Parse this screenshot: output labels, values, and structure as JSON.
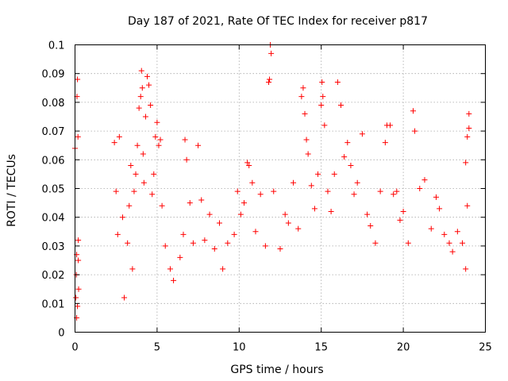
{
  "chart_data": {
    "type": "scatter",
    "title": "Day 187 of 2021, Rate Of TEC Index for receiver p817",
    "xlabel": "GPS time / hours",
    "ylabel": "ROTI / TECUs",
    "xlim": [
      0,
      25
    ],
    "ylim": [
      0,
      0.1
    ],
    "xticks": [
      0,
      5,
      10,
      15,
      20,
      25
    ],
    "xtick_labels": [
      "0",
      "5",
      "10",
      "15",
      "20",
      "25"
    ],
    "yticks": [
      0,
      0.01,
      0.02,
      0.03,
      0.04,
      0.05,
      0.06,
      0.07,
      0.08,
      0.09,
      0.1
    ],
    "ytick_labels": [
      "0",
      "0.01",
      "0.02",
      "0.03",
      "0.04",
      "0.05",
      "0.06",
      "0.07",
      "0.08",
      "0.09",
      "0.1"
    ],
    "grid": true,
    "marker": "+",
    "color": "#ff0000",
    "series": [
      {
        "points": [
          [
            0.0,
            0.064
          ],
          [
            0.05,
            0.012
          ],
          [
            0.1,
            0.027
          ],
          [
            0.12,
            0.082
          ],
          [
            0.15,
            0.088
          ],
          [
            0.18,
            0.068
          ],
          [
            0.2,
            0.032
          ],
          [
            0.22,
            0.015
          ],
          [
            0.1,
            0.005
          ],
          [
            0.15,
            0.009
          ],
          [
            0.08,
            0.02
          ],
          [
            0.2,
            0.025
          ],
          [
            2.4,
            0.066
          ],
          [
            2.5,
            0.049
          ],
          [
            2.6,
            0.034
          ],
          [
            2.7,
            0.068
          ],
          [
            2.9,
            0.04
          ],
          [
            3.0,
            0.012
          ],
          [
            3.2,
            0.031
          ],
          [
            3.3,
            0.044
          ],
          [
            3.4,
            0.058
          ],
          [
            3.5,
            0.022
          ],
          [
            3.6,
            0.049
          ],
          [
            3.7,
            0.055
          ],
          [
            3.8,
            0.065
          ],
          [
            3.9,
            0.078
          ],
          [
            4.0,
            0.082
          ],
          [
            4.05,
            0.091
          ],
          [
            4.1,
            0.085
          ],
          [
            4.15,
            0.062
          ],
          [
            4.2,
            0.052
          ],
          [
            4.3,
            0.075
          ],
          [
            4.4,
            0.089
          ],
          [
            4.5,
            0.086
          ],
          [
            4.6,
            0.079
          ],
          [
            4.7,
            0.048
          ],
          [
            4.8,
            0.055
          ],
          [
            4.9,
            0.068
          ],
          [
            5.0,
            0.073
          ],
          [
            5.1,
            0.065
          ],
          [
            5.2,
            0.067
          ],
          [
            5.3,
            0.044
          ],
          [
            5.5,
            0.03
          ],
          [
            5.8,
            0.022
          ],
          [
            6.0,
            0.018
          ],
          [
            6.4,
            0.026
          ],
          [
            6.6,
            0.034
          ],
          [
            6.7,
            0.067
          ],
          [
            6.8,
            0.06
          ],
          [
            7.0,
            0.045
          ],
          [
            7.2,
            0.031
          ],
          [
            7.5,
            0.065
          ],
          [
            7.7,
            0.046
          ],
          [
            7.9,
            0.032
          ],
          [
            8.2,
            0.041
          ],
          [
            8.5,
            0.029
          ],
          [
            8.8,
            0.038
          ],
          [
            9.0,
            0.022
          ],
          [
            9.3,
            0.031
          ],
          [
            9.7,
            0.034
          ],
          [
            9.9,
            0.049
          ],
          [
            10.1,
            0.041
          ],
          [
            10.3,
            0.045
          ],
          [
            10.5,
            0.059
          ],
          [
            10.6,
            0.058
          ],
          [
            10.8,
            0.052
          ],
          [
            11.0,
            0.035
          ],
          [
            11.3,
            0.048
          ],
          [
            11.6,
            0.03
          ],
          [
            11.8,
            0.087
          ],
          [
            11.85,
            0.088
          ],
          [
            11.9,
            0.1
          ],
          [
            11.95,
            0.097
          ],
          [
            12.1,
            0.049
          ],
          [
            12.5,
            0.029
          ],
          [
            12.8,
            0.041
          ],
          [
            13.0,
            0.038
          ],
          [
            13.3,
            0.052
          ],
          [
            13.6,
            0.036
          ],
          [
            13.8,
            0.082
          ],
          [
            13.9,
            0.085
          ],
          [
            14.0,
            0.076
          ],
          [
            14.1,
            0.067
          ],
          [
            14.2,
            0.062
          ],
          [
            14.4,
            0.051
          ],
          [
            14.6,
            0.043
          ],
          [
            14.8,
            0.055
          ],
          [
            15.0,
            0.079
          ],
          [
            15.05,
            0.087
          ],
          [
            15.1,
            0.082
          ],
          [
            15.2,
            0.072
          ],
          [
            15.4,
            0.049
          ],
          [
            15.6,
            0.042
          ],
          [
            15.8,
            0.055
          ],
          [
            16.0,
            0.087
          ],
          [
            16.2,
            0.079
          ],
          [
            16.4,
            0.061
          ],
          [
            16.6,
            0.066
          ],
          [
            16.8,
            0.058
          ],
          [
            17.0,
            0.048
          ],
          [
            17.2,
            0.052
          ],
          [
            17.5,
            0.069
          ],
          [
            17.8,
            0.041
          ],
          [
            18.0,
            0.037
          ],
          [
            18.3,
            0.031
          ],
          [
            18.6,
            0.049
          ],
          [
            18.9,
            0.066
          ],
          [
            19.0,
            0.072
          ],
          [
            19.2,
            0.072
          ],
          [
            19.4,
            0.048
          ],
          [
            19.6,
            0.049
          ],
          [
            19.8,
            0.039
          ],
          [
            20.0,
            0.042
          ],
          [
            20.3,
            0.031
          ],
          [
            20.6,
            0.077
          ],
          [
            20.7,
            0.07
          ],
          [
            21.0,
            0.05
          ],
          [
            21.3,
            0.053
          ],
          [
            21.7,
            0.036
          ],
          [
            22.0,
            0.047
          ],
          [
            22.2,
            0.043
          ],
          [
            22.5,
            0.034
          ],
          [
            22.8,
            0.031
          ],
          [
            23.0,
            0.028
          ],
          [
            23.3,
            0.035
          ],
          [
            23.6,
            0.031
          ],
          [
            23.8,
            0.059
          ],
          [
            23.9,
            0.068
          ],
          [
            24.0,
            0.076
          ],
          [
            24.0,
            0.071
          ],
          [
            23.9,
            0.044
          ],
          [
            23.8,
            0.022
          ]
        ]
      }
    ]
  }
}
